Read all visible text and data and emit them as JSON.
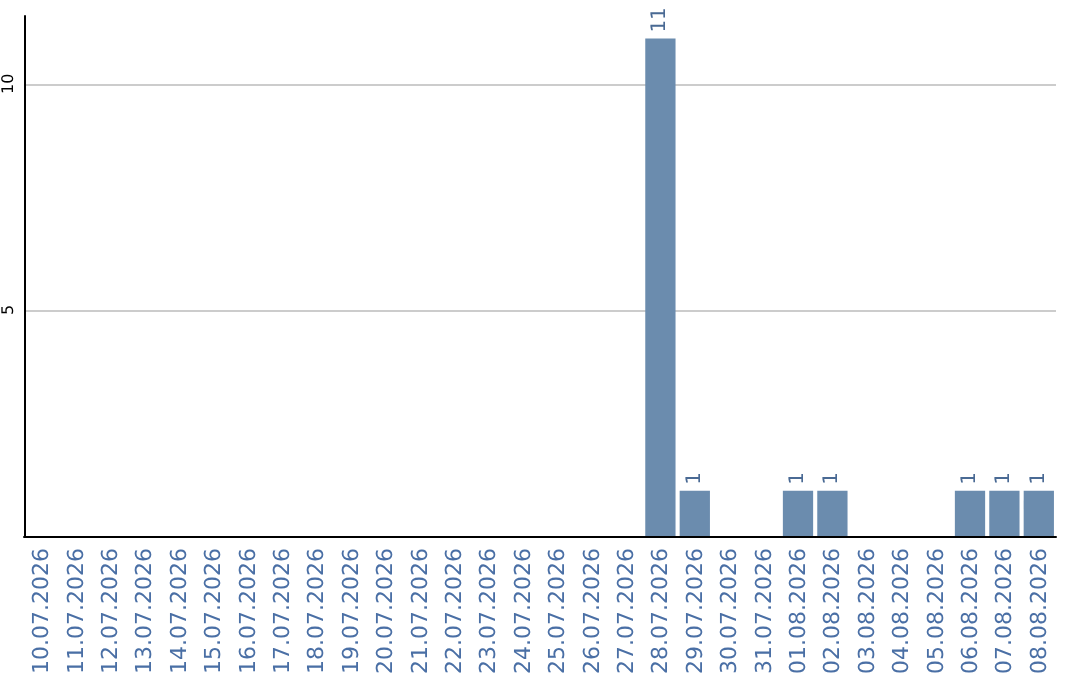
{
  "chart_data": {
    "type": "bar",
    "categories": [
      "10.07.2026",
      "11.07.2026",
      "12.07.2026",
      "13.07.2026",
      "14.07.2026",
      "15.07.2026",
      "16.07.2026",
      "17.07.2026",
      "18.07.2026",
      "19.07.2026",
      "20.07.2026",
      "21.07.2026",
      "22.07.2026",
      "23.07.2026",
      "24.07.2026",
      "25.07.2026",
      "26.07.2026",
      "27.07.2026",
      "28.07.2026",
      "29.07.2026",
      "30.07.2026",
      "31.07.2026",
      "01.08.2026",
      "02.08.2026",
      "03.08.2026",
      "04.08.2026",
      "05.08.2026",
      "06.08.2026",
      "07.08.2026",
      "08.08.2026"
    ],
    "values": [
      0,
      0,
      0,
      0,
      0,
      0,
      0,
      0,
      0,
      0,
      0,
      0,
      0,
      0,
      0,
      0,
      0,
      0,
      11,
      1,
      0,
      0,
      1,
      1,
      0,
      0,
      0,
      1,
      1,
      1
    ],
    "value_labels": [
      null,
      null,
      null,
      null,
      null,
      null,
      null,
      null,
      null,
      null,
      null,
      null,
      null,
      null,
      null,
      null,
      null,
      null,
      "11",
      "1",
      null,
      null,
      "1",
      "1",
      null,
      null,
      null,
      "1",
      "1",
      "1"
    ],
    "color": "#6b8cae",
    "ylim": [
      0,
      11.5
    ],
    "yticks": [
      5,
      10
    ],
    "grid": "y"
  }
}
